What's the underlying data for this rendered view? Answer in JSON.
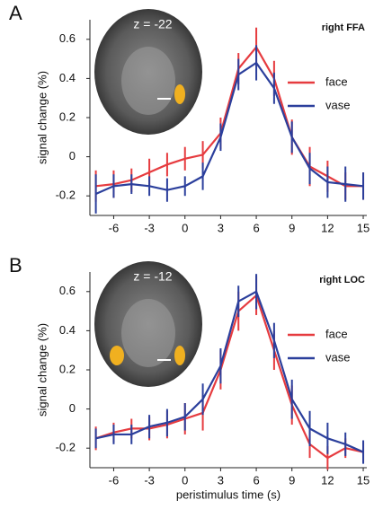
{
  "chart_data": [
    {
      "type": "line",
      "panel_label": "A",
      "title": "right FFA",
      "inset_label": "z = -22",
      "ylabel": "signal change (%)",
      "x": [
        -7.5,
        -6,
        -4.5,
        -3,
        -1.5,
        0,
        1.5,
        3,
        4.5,
        6,
        7.5,
        9,
        10.5,
        12,
        13.5,
        15
      ],
      "xlim": [
        -8,
        15.3
      ],
      "xticks": [
        -6,
        -3,
        0,
        3,
        6,
        9,
        12,
        15
      ],
      "ylim": [
        -0.3,
        0.7
      ],
      "yticks": [
        -0.2,
        0,
        0.2,
        0.4,
        0.6
      ],
      "series": [
        {
          "name": "face",
          "color": "#e63b3f",
          "values": [
            -0.15,
            -0.14,
            -0.12,
            -0.08,
            -0.04,
            -0.01,
            0.01,
            0.12,
            0.45,
            0.56,
            0.4,
            0.1,
            -0.05,
            -0.1,
            -0.15,
            -0.15
          ],
          "errors": [
            0.08,
            0.07,
            0.06,
            0.07,
            0.06,
            0.06,
            0.07,
            0.08,
            0.08,
            0.1,
            0.09,
            0.09,
            0.1,
            0.08,
            0.07,
            0.07
          ]
        },
        {
          "name": "vase",
          "color": "#2b3f9c",
          "values": [
            -0.19,
            -0.15,
            -0.14,
            -0.15,
            -0.17,
            -0.15,
            -0.1,
            0.1,
            0.42,
            0.48,
            0.35,
            0.1,
            -0.06,
            -0.13,
            -0.14,
            -0.15
          ],
          "errors": [
            0.1,
            0.06,
            0.05,
            0.05,
            0.06,
            0.05,
            0.07,
            0.07,
            0.08,
            0.09,
            0.08,
            0.08,
            0.08,
            0.08,
            0.09,
            0.07
          ]
        }
      ]
    },
    {
      "type": "line",
      "panel_label": "B",
      "title": "right LOC",
      "inset_label": "z = -12",
      "ylabel": "signal change (%)",
      "xlabel": "peristimulus time (s)",
      "x": [
        -7.5,
        -6,
        -4.5,
        -3,
        -1.5,
        0,
        1.5,
        3,
        4.5,
        6,
        7.5,
        9,
        10.5,
        12,
        13.5,
        15
      ],
      "xlim": [
        -8,
        15.3
      ],
      "xticks": [
        -6,
        -3,
        0,
        3,
        6,
        9,
        12,
        15
      ],
      "ylim": [
        -0.3,
        0.7
      ],
      "yticks": [
        -0.2,
        0,
        0.2,
        0.4,
        0.6
      ],
      "series": [
        {
          "name": "face",
          "color": "#e63b3f",
          "values": [
            -0.15,
            -0.12,
            -0.1,
            -0.1,
            -0.08,
            -0.05,
            -0.02,
            0.2,
            0.5,
            0.58,
            0.3,
            0.02,
            -0.18,
            -0.25,
            -0.2,
            -0.22
          ],
          "errors": [
            0.06,
            0.05,
            0.05,
            0.06,
            0.07,
            0.08,
            0.09,
            0.1,
            0.1,
            0.1,
            0.1,
            0.1,
            0.07,
            0.06,
            0.05,
            0.05
          ]
        },
        {
          "name": "vase",
          "color": "#2b3f9c",
          "values": [
            -0.15,
            -0.13,
            -0.13,
            -0.09,
            -0.07,
            -0.04,
            0.05,
            0.22,
            0.55,
            0.6,
            0.35,
            0.05,
            -0.1,
            -0.15,
            -0.18,
            -0.22
          ],
          "errors": [
            0.05,
            0.05,
            0.05,
            0.06,
            0.07,
            0.07,
            0.08,
            0.09,
            0.08,
            0.09,
            0.09,
            0.1,
            0.09,
            0.08,
            0.06,
            0.06
          ]
        }
      ]
    }
  ]
}
